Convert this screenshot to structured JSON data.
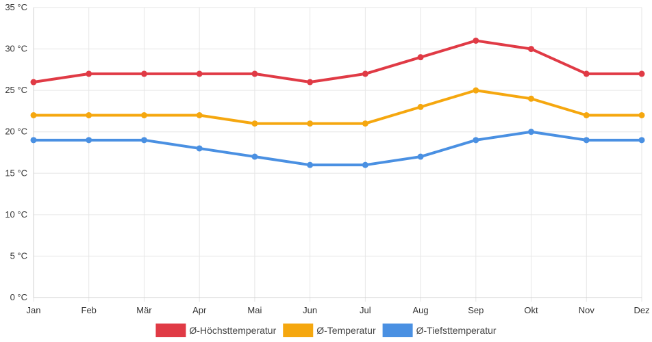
{
  "chart_data": {
    "type": "line",
    "title": "",
    "xlabel": "",
    "ylabel": "",
    "categories": [
      "Jan",
      "Feb",
      "Mär",
      "Apr",
      "Mai",
      "Jun",
      "Jul",
      "Aug",
      "Sep",
      "Okt",
      "Nov",
      "Dez"
    ],
    "ylim": [
      0,
      35
    ],
    "yticks": [
      0,
      5,
      10,
      15,
      20,
      25,
      30,
      35
    ],
    "ytick_suffix": " °C",
    "grid": true,
    "legend_position": "bottom",
    "series": [
      {
        "name": "Ø-Höchsttemperatur",
        "color": "#e03a45",
        "values": [
          26,
          27,
          27,
          27,
          27,
          26,
          27,
          29,
          31,
          30,
          27,
          27
        ]
      },
      {
        "name": "Ø-Temperatur",
        "color": "#f5a70f",
        "values": [
          22,
          22,
          22,
          22,
          21,
          21,
          21,
          23,
          25,
          24,
          22,
          22
        ]
      },
      {
        "name": "Ø-Tiefsttemperatur",
        "color": "#4a90e2",
        "values": [
          19,
          19,
          19,
          18,
          17,
          16,
          16,
          17,
          19,
          20,
          19,
          19
        ]
      }
    ]
  }
}
